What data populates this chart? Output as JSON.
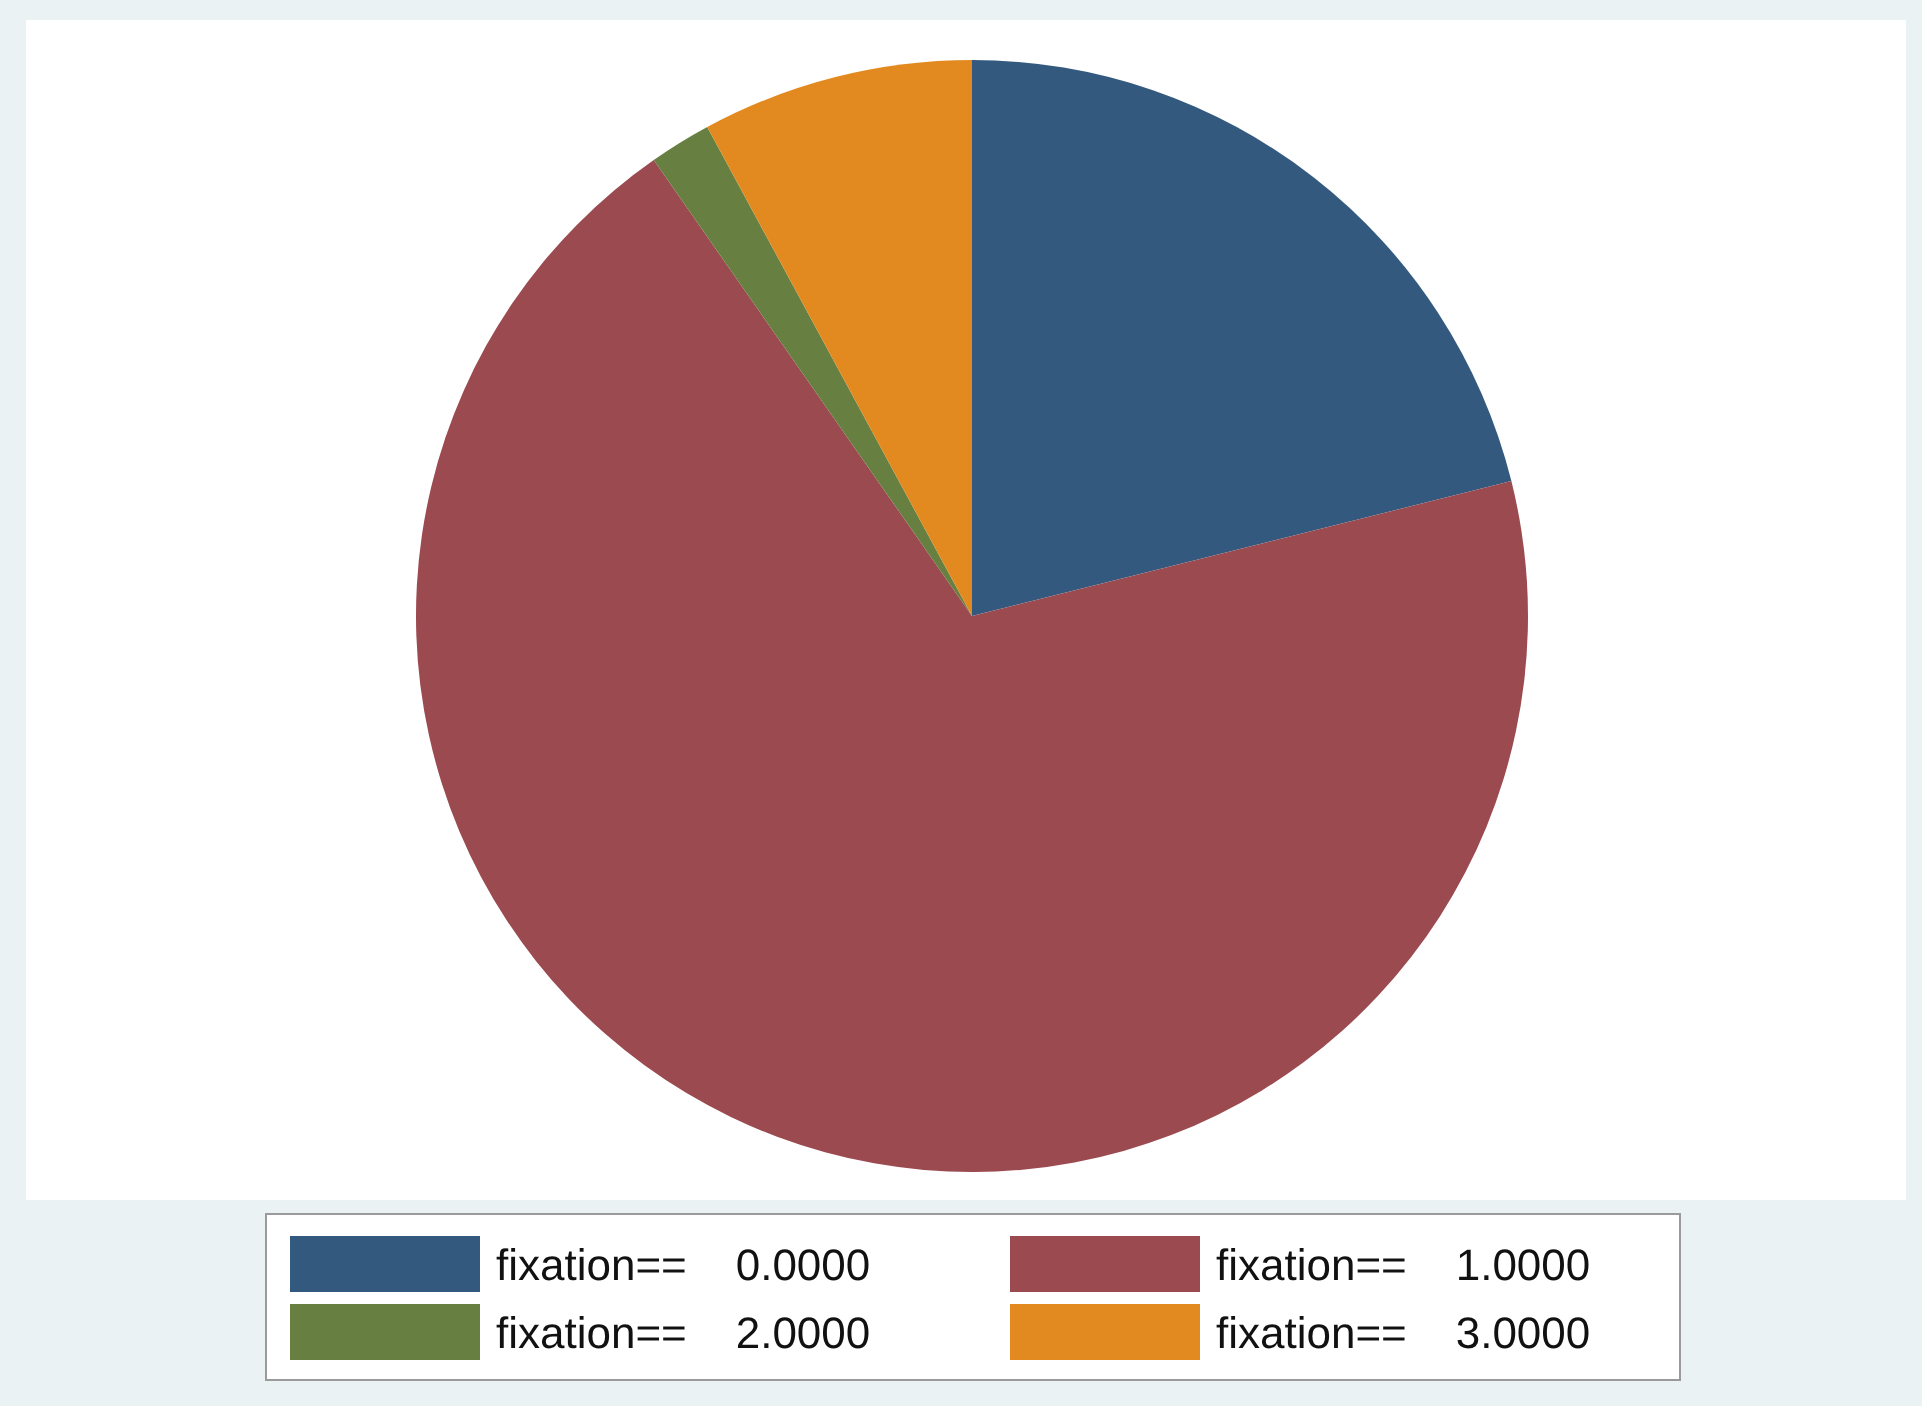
{
  "chart_data": {
    "type": "pie",
    "categories": [
      "fixation==    0.0000",
      "fixation==    1.0000",
      "fixation==    2.0000",
      "fixation==    3.0000"
    ],
    "values": [
      21.1,
      69.2,
      1.8,
      7.9
    ],
    "colors": [
      "#335a7e",
      "#9b4a50",
      "#677f40",
      "#e28a1f"
    ],
    "legend": "bottom"
  }
}
